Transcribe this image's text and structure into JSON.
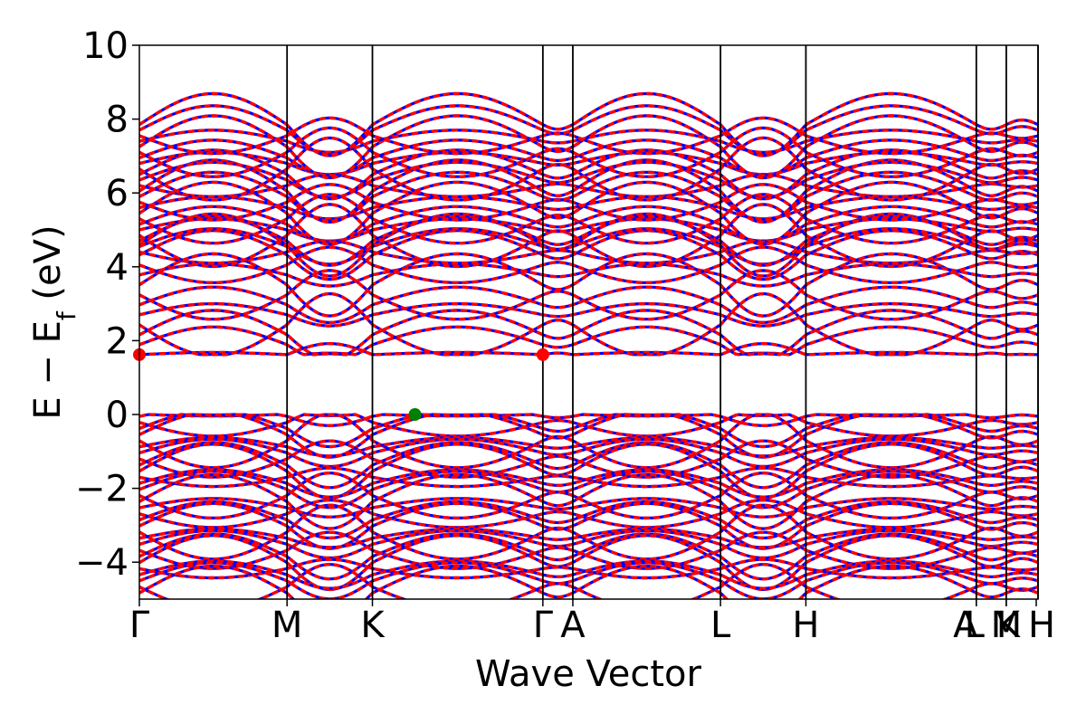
{
  "chart_data": {
    "type": "line",
    "title": "",
    "xlabel": "Wave Vector",
    "ylabel": {
      "main": "E − E",
      "sub": "f",
      "unit": " (eV)"
    },
    "ylim": [
      -5,
      10
    ],
    "yticks": [
      -4,
      -2,
      0,
      2,
      4,
      6,
      8,
      10
    ],
    "ytick_labels": [
      "−4",
      "−2",
      "0",
      "2",
      "4",
      "6",
      "8",
      "10"
    ],
    "kpath": {
      "total": 3.0,
      "points": [
        {
          "label": "Γ",
          "x": 0.0
        },
        {
          "label": "M",
          "x": 0.493
        },
        {
          "label": "K",
          "x": 0.778
        },
        {
          "label": "Γ",
          "x": 1.347
        },
        {
          "label": "A",
          "x": 1.447
        },
        {
          "label": "L",
          "x": 1.94
        },
        {
          "label": "H",
          "x": 2.225
        },
        {
          "label": "A",
          "x": 2.794
        },
        {
          "label": "L",
          "x": 2.794
        },
        {
          "label": "M",
          "x": 2.894
        },
        {
          "label": "K",
          "x": 2.894
        },
        {
          "label": "H",
          "x": 2.994
        },
        {
          "label": "",
          "x": 3.0
        }
      ],
      "vlines": [
        0.493,
        0.778,
        1.347,
        1.447,
        1.94,
        2.225,
        2.794,
        2.894,
        3.0
      ]
    },
    "series": [
      {
        "color": "#0000ff",
        "style": "solid"
      },
      {
        "color": "#ff0000",
        "style": "dashed"
      }
    ],
    "markers": [
      {
        "x": 0.0,
        "y": 1.62,
        "color": "#ff0000"
      },
      {
        "x": 1.347,
        "y": 1.62,
        "color": "#ff0000"
      },
      {
        "x": 0.92,
        "y": 0.0,
        "color": "#008000"
      }
    ],
    "band_gap": {
      "cbm": 1.62,
      "vbm": 0.0
    },
    "grid": false
  }
}
